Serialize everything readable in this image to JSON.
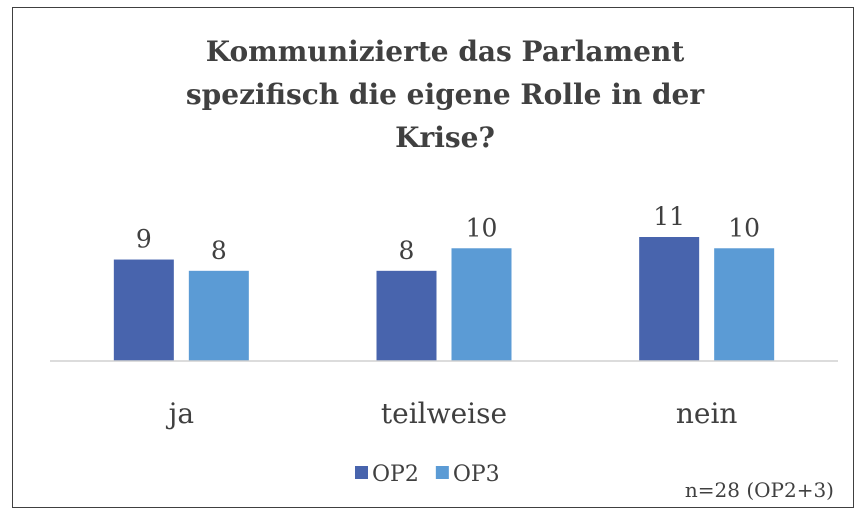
{
  "chart_data": {
    "type": "bar",
    "title": "Kommunizierte das Parlament spezifisch die eigene Rolle in der Krise?",
    "categories": [
      "ja",
      "teilweise",
      "nein"
    ],
    "series": [
      {
        "name": "OP2",
        "color": "#4864ad",
        "values": [
          9,
          8,
          11
        ]
      },
      {
        "name": "OP3",
        "color": "#5b9bd5",
        "values": [
          8,
          10,
          10
        ]
      }
    ],
    "annotation": "n=28 (OP2+3)",
    "legend": "bottom"
  }
}
